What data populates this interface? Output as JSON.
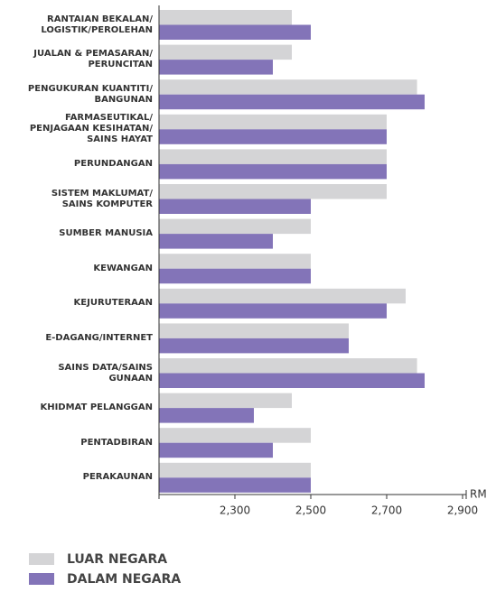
{
  "chart_data": {
    "type": "hbar",
    "categories": [
      "RANTAIAN BEKALAN/\nLOGISTIK/PEROLEHAN",
      "JUALAN & PEMASARAN/\nPERUNCITAN",
      "PENGUKURAN KUANTITI/\nBANGUNAN",
      "FARMASEUTIKAL/\nPENJAGAAN KESIHATAN/\nSAINS HAYAT",
      "PERUNDANGAN",
      "SISTEM MAKLUMAT/\nSAINS KOMPUTER",
      "SUMBER MANUSIA",
      "KEWANGAN",
      "KEJURUTERAAN",
      "E-DAGANG/INTERNET",
      "SAINS DATA/SAINS\nGUNAAN",
      "KHIDMAT PELANGGAN",
      "PENTADBIRAN",
      "PERAKAUNAN"
    ],
    "series": [
      {
        "name": "LUAR NEGARA",
        "color": "#d4d4d6",
        "values": [
          2450,
          2450,
          2780,
          2700,
          2700,
          2700,
          2500,
          2500,
          2750,
          2600,
          2780,
          2450,
          2500,
          2500
        ]
      },
      {
        "name": "DALAM NEGARA",
        "color": "#8374b8",
        "values": [
          2500,
          2400,
          2800,
          2700,
          2700,
          2500,
          2400,
          2500,
          2700,
          2600,
          2800,
          2350,
          2400,
          2500
        ]
      }
    ],
    "xlabel": "RM",
    "xlim": [
      2100,
      2900
    ],
    "xticks": [
      {
        "value": 2300,
        "label": "2,300"
      },
      {
        "value": 2500,
        "label": "2,500"
      },
      {
        "value": 2700,
        "label": "2,700"
      },
      {
        "value": 2900,
        "label": "2,900"
      }
    ]
  }
}
